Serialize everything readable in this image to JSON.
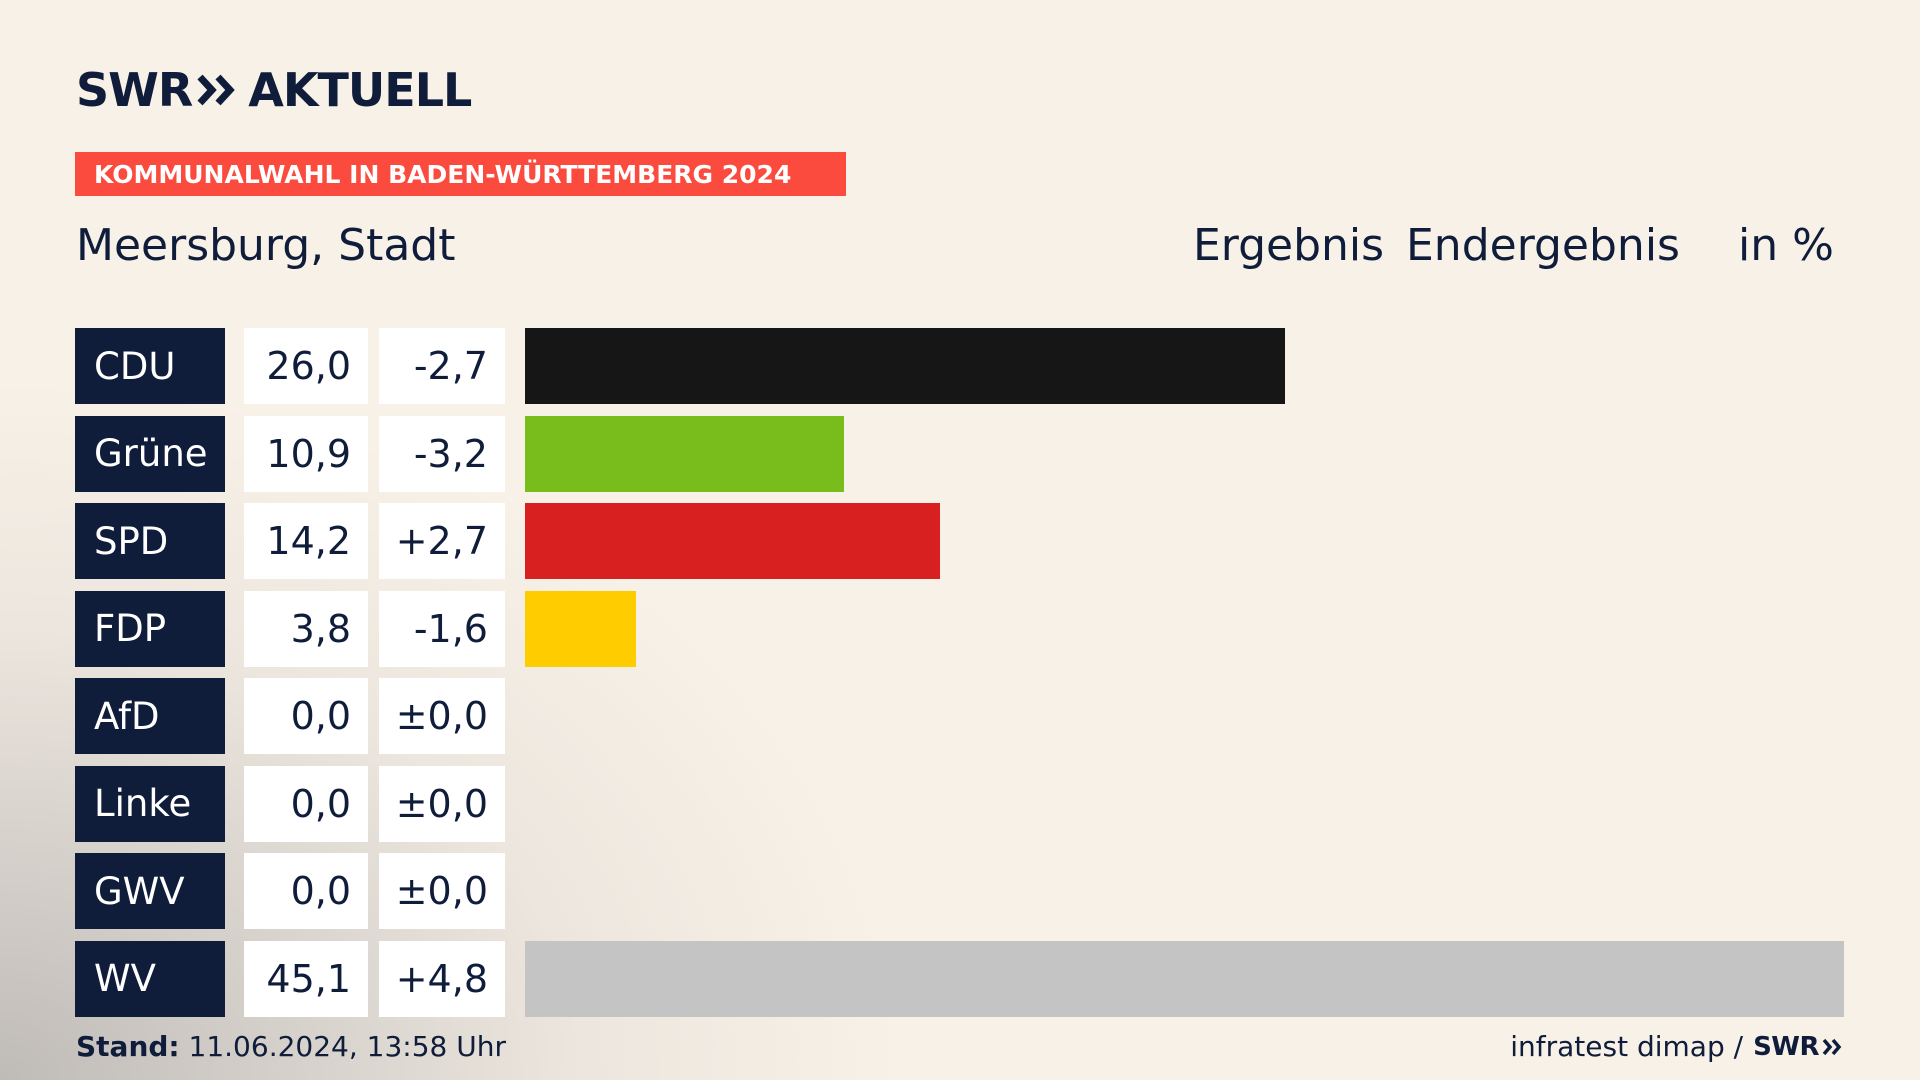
{
  "logo": {
    "brand": "SWR",
    "product": "AKTUELL"
  },
  "banner": "KOMMUNALWAHL IN BADEN-WÜRTTEMBERG 2024",
  "location": "Meersburg, Stadt",
  "header": {
    "ergebnis": "Ergebnis",
    "endergebnis": "Endergebnis",
    "unit": "in %"
  },
  "chart_data": {
    "type": "bar",
    "orientation": "horizontal",
    "categories": [
      "CDU",
      "Grüne",
      "SPD",
      "FDP",
      "AfD",
      "Linke",
      "GWV",
      "WV"
    ],
    "values": [
      26.0,
      10.9,
      14.2,
      3.8,
      0.0,
      0.0,
      0.0,
      45.1
    ],
    "value_labels": [
      "26,0",
      "10,9",
      "14,2",
      "3,8",
      "0,0",
      "0,0",
      "0,0",
      "45,1"
    ],
    "diff_labels": [
      "-2,7",
      "-3,2",
      "+2,7",
      "-1,6",
      "±0,0",
      "±0,0",
      "±0,0",
      "+4,8"
    ],
    "colors": [
      "#161616",
      "#79bd1c",
      "#d7201f",
      "#ffcc00",
      "#159dd8",
      "#be2b53",
      "#c4c4c4",
      "#c4c4c4"
    ],
    "xlim": [
      0,
      45.1
    ],
    "title": "Meersburg, Stadt",
    "grid": false,
    "legend": "none"
  },
  "footer": {
    "stand_label": "Stand:",
    "stand_value": "11.06.2024, 13:58 Uhr",
    "source": "infratest dimap /",
    "source_brand": "SWR"
  },
  "colors": {
    "navy": "#0f1d3b",
    "banner": "#fa4b3e",
    "background": "#f8f1e7"
  },
  "icons": {
    "logo_arrows": "double-chevron-right-icon"
  }
}
